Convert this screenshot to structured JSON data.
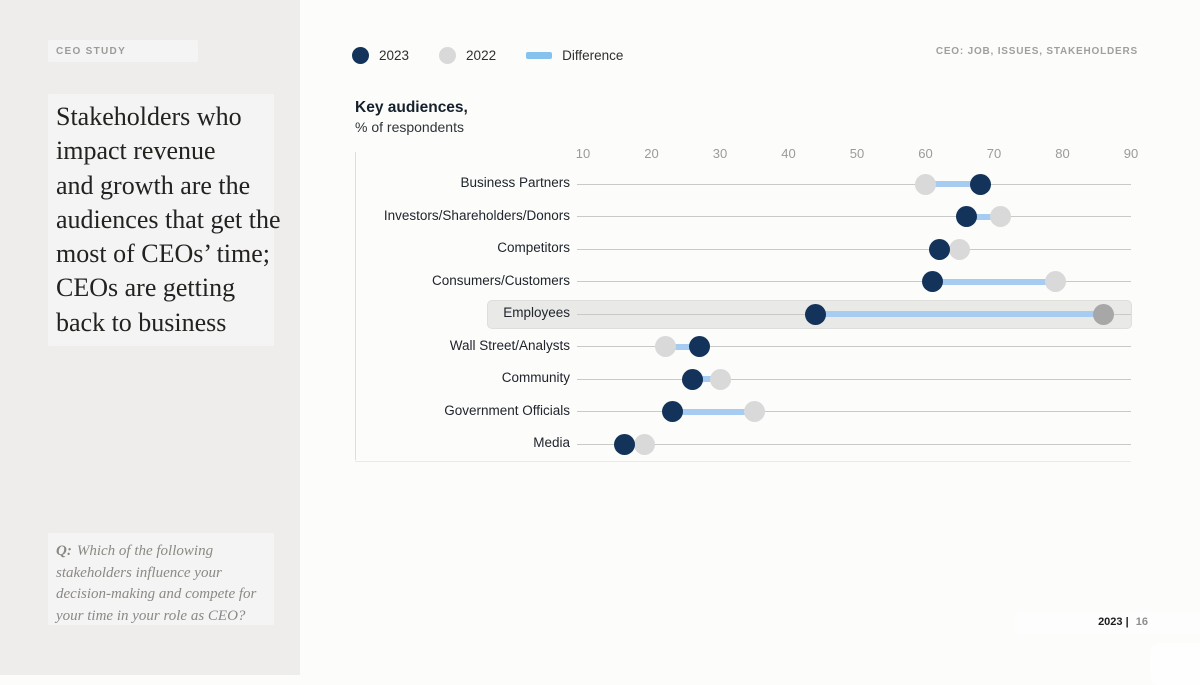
{
  "page": {
    "background": "#fcfcfb",
    "sidebar_background": "#eeedec"
  },
  "sidebar": {
    "eyebrow": "CEO STUDY",
    "headline_lines": [
      "Stakeholders who",
      "impact revenue",
      "and growth are the",
      "audiences that get the",
      "most of CEOs’ time;",
      "CEOs are getting",
      "back to business"
    ],
    "question": {
      "prefix": "Q:",
      "lines": [
        "Which of the following",
        "stakeholders influence your",
        "decision-making and compete for",
        "your time in your role as CEO?"
      ]
    }
  },
  "header": {
    "right_label": "CEO: JOB, ISSUES, STAKEHOLDERS"
  },
  "legend": {
    "items": [
      {
        "swatch": "dot",
        "color_key": "navy",
        "label": "2023"
      },
      {
        "swatch": "dot",
        "color_key": "gray",
        "label": "2022"
      },
      {
        "swatch": "bar",
        "color_key": "diff_legend",
        "label": "Difference"
      }
    ]
  },
  "footer": {
    "year": "2023",
    "separator": "|",
    "page_number": "16"
  },
  "colors": {
    "navy": "#13335a",
    "gray": "#d9d9d9",
    "gray_highlight": "#a7a7a7",
    "diff": "#a6cdf1",
    "diff_legend": "#85c2ee",
    "row_line": "#c9c9c8",
    "tick_text": "#9b9b9b"
  },
  "chart_data": {
    "type": "dumbbell",
    "title": "Key audiences,",
    "subtitle": "% of respondents",
    "axis": {
      "min": 10,
      "max": 90,
      "ticks": [
        10,
        20,
        30,
        40,
        50,
        60,
        70,
        80,
        90
      ]
    },
    "categories": [
      "Business Partners",
      "Investors/Shareholders/Donors",
      "Competitors",
      "Consumers/Customers",
      "Employees",
      "Wall Street/Analysts",
      "Community",
      "Government Officials",
      "Media"
    ],
    "series": [
      {
        "name": "2023",
        "values": [
          68,
          66,
          62,
          61,
          44,
          27,
          26,
          23,
          16
        ]
      },
      {
        "name": "2022",
        "values": [
          60,
          71,
          65,
          79,
          86,
          22,
          30,
          35,
          19
        ]
      }
    ],
    "highlighted_category": "Employees",
    "legend_position": "top-left",
    "grid": "horizontal-row-lines"
  }
}
